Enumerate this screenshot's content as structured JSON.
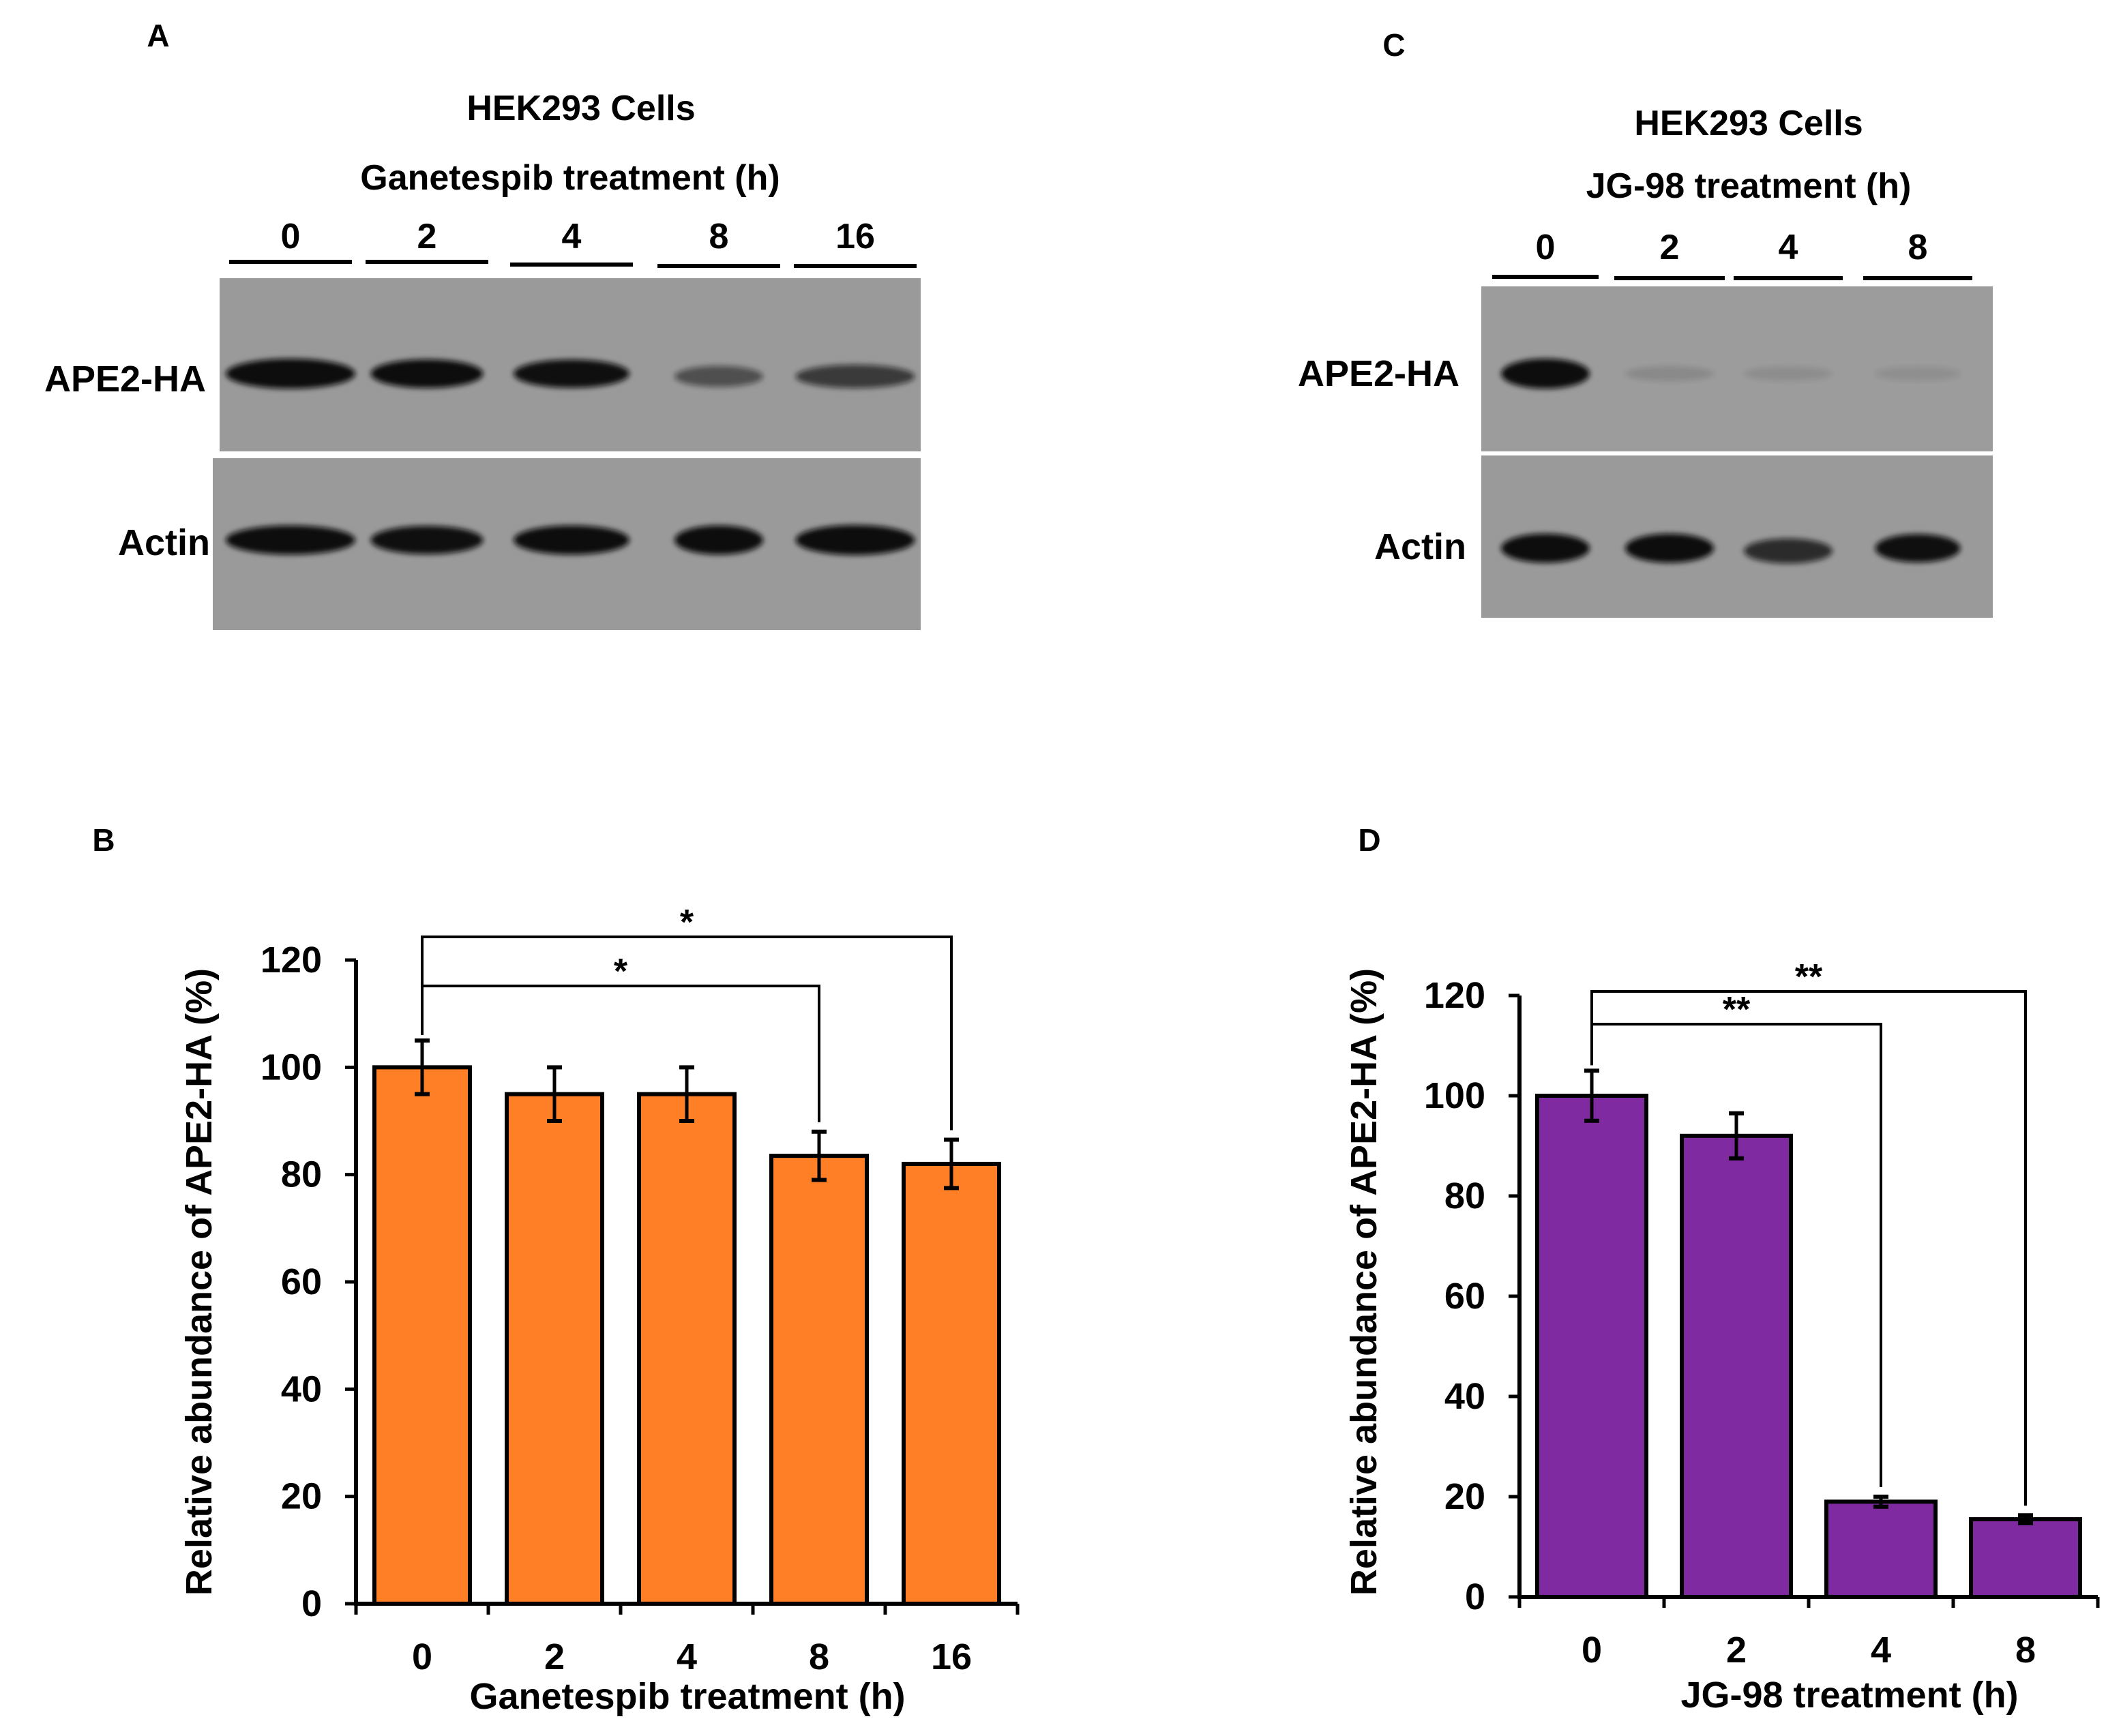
{
  "panels": {
    "A": {
      "letter": "A",
      "cells_title": "HEK293 Cells",
      "treatment_title": "Ganetespib treatment (h)",
      "lanes": [
        "0",
        "2",
        "4",
        "8",
        "16"
      ],
      "rows": [
        "APE2-HA",
        "Actin"
      ],
      "band_intensity": {
        "APE2-HA": [
          1.0,
          0.92,
          0.9,
          0.45,
          0.6
        ],
        "Actin": [
          0.95,
          0.9,
          0.95,
          0.95,
          1.0
        ]
      }
    },
    "C": {
      "letter": "C",
      "cells_title": "HEK293 Cells",
      "treatment_title": "JG-98 treatment (h)",
      "lanes": [
        "0",
        "2",
        "4",
        "8"
      ],
      "rows": [
        "APE2-HA",
        "Actin"
      ],
      "band_intensity": {
        "APE2-HA": [
          1.0,
          0.05,
          0.02,
          0.01
        ],
        "Actin": [
          0.95,
          0.95,
          0.7,
          0.9
        ]
      }
    },
    "B": {
      "letter": "B"
    },
    "D": {
      "letter": "D"
    }
  },
  "colors": {
    "B": "#FF7F27",
    "D": "#7F2AA0",
    "blot_bg": "#9A9A9A",
    "band": "#0b0b0b"
  },
  "chart_data": [
    {
      "id": "B",
      "type": "bar",
      "categories": [
        "0",
        "2",
        "4",
        "8",
        "16"
      ],
      "values": [
        100,
        95,
        95,
        83.5,
        82
      ],
      "errors": [
        5,
        5,
        5,
        4.5,
        4.5
      ],
      "xlabel": "Ganetespib treatment (h)",
      "ylabel": "Relative abundance of APE2-HA (%)",
      "ylim": [
        0,
        120
      ],
      "yticks": [
        0,
        20,
        40,
        60,
        80,
        100,
        120
      ],
      "grid": false,
      "significance": [
        {
          "from": "0",
          "to": "8",
          "label": "*"
        },
        {
          "from": "0",
          "to": "16",
          "label": "*"
        }
      ]
    },
    {
      "id": "D",
      "type": "bar",
      "categories": [
        "0",
        "2",
        "4",
        "8"
      ],
      "values": [
        100,
        92,
        19,
        15.5
      ],
      "errors": [
        5,
        4.5,
        1,
        0.8
      ],
      "xlabel": "JG-98 treatment (h)",
      "ylabel": "Relative abundance of APE2-HA (%)",
      "ylim": [
        0,
        120
      ],
      "yticks": [
        0,
        20,
        40,
        60,
        80,
        100,
        120
      ],
      "grid": false,
      "significance": [
        {
          "from": "0",
          "to": "4",
          "label": "**"
        },
        {
          "from": "0",
          "to": "8",
          "label": "**"
        }
      ]
    }
  ]
}
